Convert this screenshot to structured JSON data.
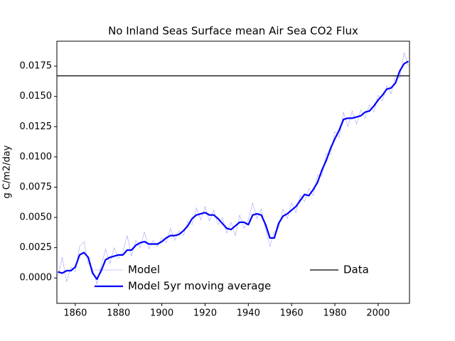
{
  "chart_data": {
    "type": "line",
    "title": "No Inland Seas Surface mean Air Sea CO2 Flux",
    "y_label": "g C/m2/day",
    "x": [
      1852,
      1854,
      1856,
      1858,
      1860,
      1862,
      1864,
      1866,
      1868,
      1870,
      1872,
      1874,
      1876,
      1878,
      1880,
      1882,
      1884,
      1886,
      1888,
      1890,
      1892,
      1894,
      1896,
      1898,
      1900,
      1902,
      1904,
      1906,
      1908,
      1910,
      1912,
      1914,
      1916,
      1918,
      1920,
      1922,
      1924,
      1926,
      1928,
      1930,
      1932,
      1934,
      1936,
      1938,
      1940,
      1942,
      1944,
      1946,
      1948,
      1950,
      1952,
      1954,
      1956,
      1958,
      1960,
      1962,
      1964,
      1966,
      1968,
      1970,
      1972,
      1974,
      1976,
      1978,
      1980,
      1982,
      1984,
      1986,
      1988,
      1990,
      1992,
      1994,
      1996,
      1998,
      2000,
      2002,
      2004,
      2006,
      2008,
      2010,
      2012,
      2014
    ],
    "series": [
      {
        "name": "Model",
        "color": "#0000ff",
        "opacity": 0.45,
        "linewidth": 0.5,
        "values": [
          0.0002,
          0.0017,
          -0.0003,
          0.0009,
          0.0005,
          0.0026,
          0.003,
          0.0012,
          0.0008,
          -0.0005,
          0.001,
          0.0024,
          0.0012,
          0.0025,
          0.0016,
          0.0022,
          0.0035,
          0.0018,
          0.0031,
          0.0025,
          0.0038,
          0.0024,
          0.0031,
          0.0026,
          0.0033,
          0.0029,
          0.0041,
          0.0031,
          0.0039,
          0.0035,
          0.0047,
          0.0044,
          0.0058,
          0.0048,
          0.0059,
          0.0047,
          0.0056,
          0.0044,
          0.005,
          0.0037,
          0.0046,
          0.0035,
          0.0052,
          0.0041,
          0.0048,
          0.0062,
          0.0049,
          0.0057,
          0.004,
          0.0026,
          0.0038,
          0.0041,
          0.0057,
          0.0049,
          0.0062,
          0.0054,
          0.0068,
          0.0063,
          0.0074,
          0.0068,
          0.0085,
          0.0084,
          0.0103,
          0.0102,
          0.0121,
          0.0116,
          0.0137,
          0.0125,
          0.0138,
          0.0127,
          0.0139,
          0.0132,
          0.0143,
          0.0137,
          0.0151,
          0.0146,
          0.0159,
          0.0152,
          0.0167,
          0.0165,
          0.0186,
          0.0175
        ]
      },
      {
        "name": "Model 5yr moving average",
        "color": "#0000ff",
        "opacity": 1,
        "linewidth": 2.2,
        "values": [
          0.0005,
          0.0004,
          0.0006,
          0.0006,
          0.0009,
          0.0019,
          0.0021,
          0.0017,
          0.0004,
          -0.0001,
          0.0006,
          0.0015,
          0.0017,
          0.0018,
          0.0019,
          0.0019,
          0.0023,
          0.0023,
          0.0027,
          0.0029,
          0.003,
          0.0028,
          0.0028,
          0.0028,
          0.003,
          0.0033,
          0.0035,
          0.0035,
          0.0036,
          0.0039,
          0.0043,
          0.0049,
          0.0052,
          0.0053,
          0.0054,
          0.0052,
          0.0052,
          0.0049,
          0.0045,
          0.0041,
          0.004,
          0.0043,
          0.0046,
          0.0046,
          0.0044,
          0.0052,
          0.0053,
          0.0052,
          0.0044,
          0.0033,
          0.0033,
          0.0045,
          0.0051,
          0.0053,
          0.0056,
          0.0059,
          0.0064,
          0.0069,
          0.0068,
          0.0073,
          0.0079,
          0.0089,
          0.0097,
          0.0107,
          0.0115,
          0.0122,
          0.0131,
          0.0132,
          0.0132,
          0.0133,
          0.0134,
          0.0137,
          0.0138,
          0.0142,
          0.0147,
          0.0151,
          0.0156,
          0.0157,
          0.0161,
          0.0171,
          0.0177,
          0.0179
        ]
      }
    ],
    "reference": {
      "name": "Data",
      "color": "#000000",
      "value": 0.0167
    },
    "xlim": [
      1851.5,
      2014.5
    ],
    "ylim": [
      -0.0021,
      0.01956
    ],
    "xticks": [
      1860,
      1880,
      1900,
      1920,
      1940,
      1960,
      1980,
      2000
    ],
    "yticks": [
      {
        "value": 0,
        "label": "0.0000"
      },
      {
        "value": 0.0025,
        "label": "0.0025"
      },
      {
        "value": 0.005,
        "label": "0.0050"
      },
      {
        "value": 0.0075,
        "label": "0.0075"
      },
      {
        "value": 0.01,
        "label": "0.0100"
      },
      {
        "value": 0.0125,
        "label": "0.0125"
      },
      {
        "value": 0.015,
        "label": "0.0150"
      },
      {
        "value": 0.0175,
        "label": "0.0175"
      }
    ]
  }
}
